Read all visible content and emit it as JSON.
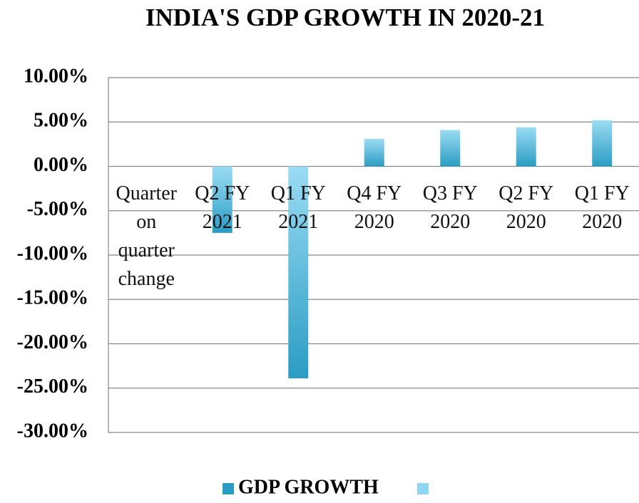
{
  "chart_data": {
    "type": "bar",
    "title": "INDIA'S  GDP GROWTH IN 2020-21",
    "categories": [
      "Quarter on quarter change",
      "Q2 FY 2021",
      "Q1 FY 2021",
      "Q4 FY 2020",
      "Q3 FY 2020",
      "Q2 FY 2020",
      "Q1 FY 2020"
    ],
    "series": [
      {
        "name": "GDP GROWTH",
        "color": "#2ea0c6",
        "values": [
          null,
          -7.5,
          -23.9,
          3.1,
          4.1,
          4.4,
          5.2
        ]
      }
    ],
    "ylim": [
      -30,
      10
    ],
    "yticks": [
      {
        "value": 10,
        "label": "10.00%"
      },
      {
        "value": 5,
        "label": "5.00%"
      },
      {
        "value": 0,
        "label": "0.00%"
      },
      {
        "value": -5,
        "label": "-5.00%"
      },
      {
        "value": -10,
        "label": "-10.00%"
      },
      {
        "value": -15,
        "label": "-15.00%"
      },
      {
        "value": -20,
        "label": "-20.00%"
      },
      {
        "value": -25,
        "label": "-25.00%"
      },
      {
        "value": -30,
        "label": "-30.00%"
      }
    ],
    "grid": true
  }
}
